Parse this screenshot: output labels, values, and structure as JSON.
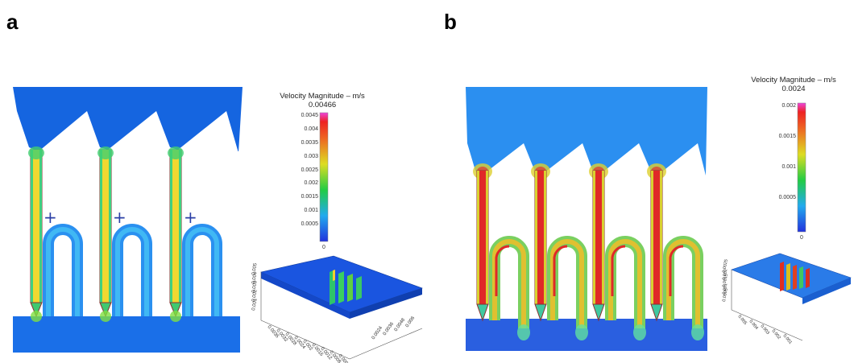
{
  "panels": [
    {
      "label": "a",
      "colorbar_title": "Velocity Magnitude – m/s",
      "colorbar_max": "0.00466",
      "colorbar_ticks": [
        "0.0045",
        "0.004",
        "0.0035",
        "0.003",
        "0.0025",
        "0.002",
        "0.0015",
        "0.001",
        "0.0005",
        "0"
      ],
      "surface_axis_ticks": [
        "0.005",
        "0.004",
        "0.003",
        "0.002",
        "0.001",
        "0.0035",
        "0.0032",
        "0.0028",
        "0.0024",
        "0.002",
        "0.0016",
        "0.0012",
        "0.0008",
        "0.0004",
        "0.0024",
        "0.0036",
        "0.0048",
        "0.006"
      ],
      "marker": "+",
      "channels": 3
    },
    {
      "label": "b",
      "colorbar_title": "Velocity Magnitude – m/s",
      "colorbar_max": "0.0024",
      "colorbar_ticks": [
        "0.002",
        "0.0015",
        "0.001",
        "0.0005",
        "0"
      ],
      "surface_axis_ticks": [
        "0.0025",
        "0.002",
        "0.0015",
        "0.001",
        "0.0005",
        "0.005",
        "0.004",
        "0.003",
        "0.002",
        "0.001"
      ],
      "channels": 4
    }
  ],
  "colors": {
    "low": "#2233dd",
    "mid": "#22cc44",
    "high": "#ee2222",
    "max": "#ee44dd",
    "marker": "#2b3fa6"
  }
}
